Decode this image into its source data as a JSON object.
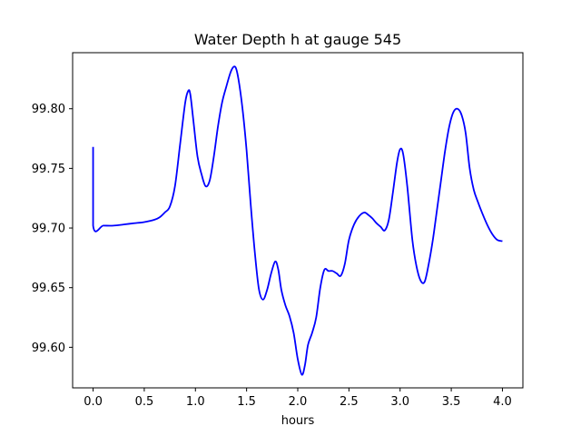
{
  "chart_data": {
    "type": "line",
    "title": "Water Depth h at gauge 545",
    "xlabel": "hours",
    "ylabel": "",
    "xlim": [
      -0.2,
      4.2
    ],
    "ylim": [
      99.566,
      99.847
    ],
    "xticks": [
      0.0,
      0.5,
      1.0,
      1.5,
      2.0,
      2.5,
      3.0,
      3.5,
      4.0
    ],
    "xtick_labels": [
      "0.0",
      "0.5",
      "1.0",
      "1.5",
      "2.0",
      "2.5",
      "3.0",
      "3.5",
      "4.0"
    ],
    "yticks": [
      99.6,
      99.65,
      99.7,
      99.75,
      99.8
    ],
    "ytick_labels": [
      "99.60",
      "99.65",
      "99.70",
      "99.75",
      "99.80"
    ],
    "grid": false,
    "legend": "none",
    "series": [
      {
        "color": "#0000ff",
        "x": [
          0.0,
          0.0,
          0.1,
          0.2,
          0.3,
          0.4,
          0.5,
          0.6,
          0.65,
          0.7,
          0.75,
          0.8,
          0.85,
          0.9,
          0.93,
          0.95,
          0.98,
          1.02,
          1.06,
          1.1,
          1.14,
          1.18,
          1.22,
          1.26,
          1.3,
          1.35,
          1.39,
          1.42,
          1.46,
          1.5,
          1.54,
          1.58,
          1.62,
          1.66,
          1.7,
          1.74,
          1.78,
          1.81,
          1.84,
          1.88,
          1.92,
          1.96,
          2.0,
          2.04,
          2.07,
          2.1,
          2.14,
          2.18,
          2.22,
          2.26,
          2.3,
          2.34,
          2.38,
          2.42,
          2.46,
          2.5,
          2.55,
          2.6,
          2.65,
          2.69,
          2.73,
          2.77,
          2.81,
          2.85,
          2.89,
          2.93,
          2.97,
          3.0,
          3.03,
          3.07,
          3.12,
          3.16,
          3.2,
          3.24,
          3.28,
          3.32,
          3.36,
          3.4,
          3.44,
          3.48,
          3.52,
          3.56,
          3.6,
          3.64,
          3.68,
          3.72,
          3.76,
          3.8,
          3.85,
          3.9,
          3.95,
          4.0
        ],
        "y": [
          99.768,
          99.702,
          99.702,
          99.702,
          99.703,
          99.704,
          99.705,
          99.707,
          99.709,
          99.713,
          99.718,
          99.735,
          99.77,
          99.805,
          99.815,
          99.812,
          99.79,
          99.76,
          99.745,
          99.735,
          99.74,
          99.76,
          99.785,
          99.805,
          99.818,
          99.832,
          99.835,
          99.825,
          99.8,
          99.765,
          99.72,
          99.68,
          99.649,
          99.64,
          99.648,
          99.662,
          99.672,
          99.665,
          99.648,
          99.635,
          99.626,
          99.612,
          99.59,
          99.577,
          99.585,
          99.602,
          99.612,
          99.625,
          99.65,
          99.665,
          99.664,
          99.664,
          99.662,
          99.66,
          99.67,
          99.69,
          99.703,
          99.71,
          99.713,
          99.711,
          99.708,
          99.704,
          99.701,
          99.698,
          99.707,
          99.73,
          99.755,
          99.766,
          99.762,
          99.735,
          99.69,
          99.668,
          99.656,
          99.655,
          99.67,
          99.69,
          99.715,
          99.74,
          99.765,
          99.785,
          99.797,
          99.8,
          99.795,
          99.78,
          99.75,
          99.732,
          99.722,
          99.713,
          99.703,
          99.695,
          99.69,
          99.689
        ]
      }
    ]
  }
}
